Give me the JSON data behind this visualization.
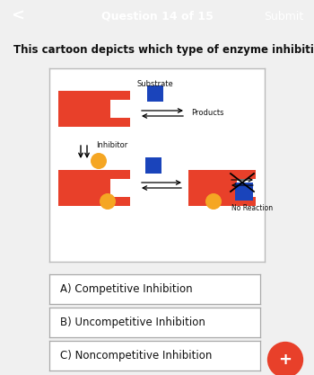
{
  "title_bar_color": "#E8402A",
  "title_bar_text": "Question 14 of 15",
  "title_bar_text_color": "#FFFFFF",
  "submit_text": "Submit",
  "back_arrow": "<",
  "question_text": "This cartoon depicts which type of enzyme inhibition?",
  "question_text_color": "#111111",
  "bg_color": "#F0F0F0",
  "card_bg": "#FFFFFF",
  "enzyme_color": "#E8402A",
  "substrate_color": "#1A44BB",
  "inhibitor_color": "#F5A623",
  "answer_options": [
    "A) Competitive Inhibition",
    "B) Uncompetitive Inhibition",
    "C) Noncompetitive Inhibition"
  ],
  "plus_button_color": "#E8402A",
  "plus_button_text": "+"
}
